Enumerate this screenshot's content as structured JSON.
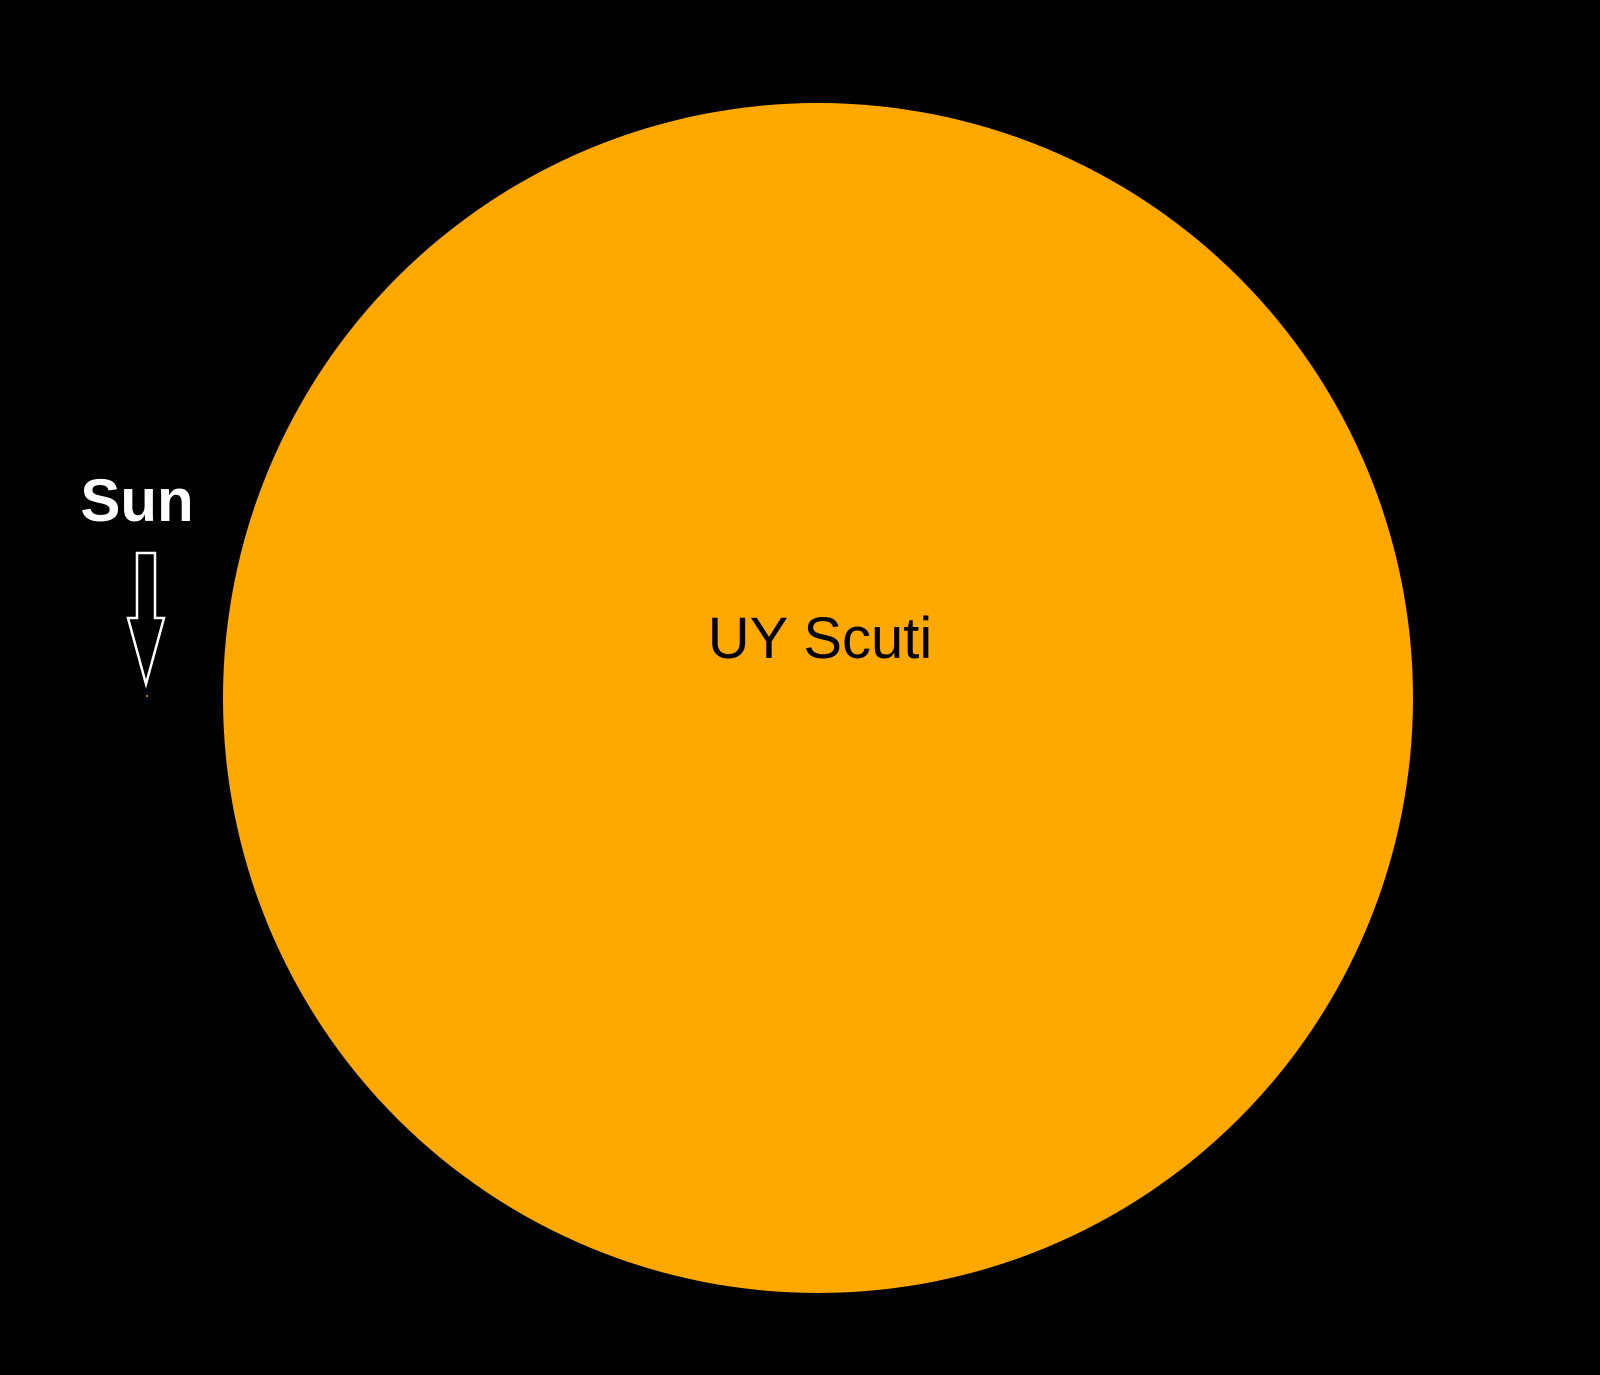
{
  "background_color": "#000000",
  "big_star": {
    "label": "UY Scuti",
    "color": "#FFA800",
    "label_color": "#000000"
  },
  "small_star": {
    "label": "Sun",
    "color": "#FFA800",
    "label_color": "#FFFFFF",
    "arrow_color": "#FFFFFF",
    "arrow_icon": "down-arrow-icon"
  }
}
